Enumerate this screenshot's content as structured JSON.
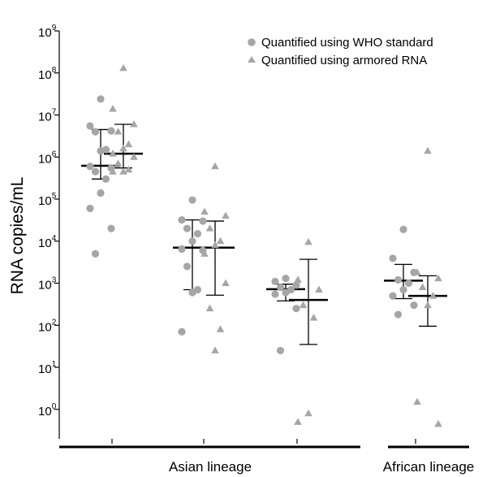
{
  "colors": {
    "point": "#a6a6a6",
    "errorbar": "#000000",
    "axis": "#000000"
  },
  "legend": {
    "position": "top-right",
    "items": [
      {
        "label": "Quantified using WHO standard",
        "marker": "circle"
      },
      {
        "label": "Quantified using armored RNA",
        "marker": "triangle"
      }
    ]
  },
  "groups": [
    {
      "label": "Asian lineage"
    },
    {
      "label": "African lineage"
    }
  ],
  "chart_data": {
    "type": "scatter",
    "ylabel": "RNA copies/mL",
    "xlabel": "",
    "yscale": "log10",
    "ylim_exponent": [
      -0.7,
      9
    ],
    "yticks_exponents": [
      0,
      1,
      2,
      3,
      4,
      5,
      6,
      7,
      8,
      9
    ],
    "ytick_base": "10",
    "grid": false,
    "legend_position": "top-right",
    "series": [
      {
        "name": "Quantified using WHO standard",
        "marker": "circle",
        "columns": [
          {
            "index": 0,
            "group": "Asian lineage",
            "values": [
              24000000,
              5500000,
              4200000,
              4000000,
              1500000,
              1400000,
              600000,
              550000,
              450000,
              300000,
              140000,
              60000,
              20000,
              5000
            ],
            "median": 620000,
            "bar_low": 300000,
            "bar_high": 4500000
          },
          {
            "index": 2,
            "group": "Asian lineage",
            "values": [
              95000,
              32000,
              30000,
              20000,
              15000,
              10000,
              6500,
              6000,
              2500,
              700,
              600,
              70
            ],
            "median": 7000,
            "bar_low": 700,
            "bar_high": 32000
          },
          {
            "index": 4,
            "group": "Asian lineage",
            "values": [
              1300,
              1100,
              900,
              800,
              700,
              600,
              550,
              250,
              25
            ],
            "median": 720,
            "bar_low": 380,
            "bar_high": 950
          },
          {
            "index": 6,
            "group": "African lineage",
            "values": [
              19000,
              3900,
              1800,
              1200,
              1000,
              700,
              500,
              300,
              180
            ],
            "median": 1150,
            "bar_low": 430,
            "bar_high": 2800
          }
        ]
      },
      {
        "name": "Quantified using armored RNA",
        "marker": "triangle",
        "columns": [
          {
            "index": 1,
            "group": "Asian lineage",
            "values": [
              130000000,
              14000000,
              6000000,
              4000000,
              2000000,
              1600000,
              1200000,
              1000000,
              700000,
              500000,
              450000,
              450000
            ],
            "median": 1200000,
            "bar_low": 550000,
            "bar_high": 6000000
          },
          {
            "index": 3,
            "group": "Asian lineage",
            "values": [
              600000,
              50000,
              40000,
              20000,
              10000,
              8000,
              5000,
              1000,
              250,
              80,
              25
            ],
            "median": 7000,
            "bar_low": 520,
            "bar_high": 30000
          },
          {
            "index": 5,
            "group": "Asian lineage",
            "values": [
              9500,
              1200,
              700,
              300,
              150,
              0.8,
              0.5
            ],
            "median": 400,
            "bar_low": 35,
            "bar_high": 3700
          },
          {
            "index": 7,
            "group": "African lineage",
            "values": [
              1400000,
              1800,
              1300,
              800,
              500,
              300,
              1.5,
              0.45
            ],
            "median": 500,
            "bar_low": 95,
            "bar_high": 1500
          }
        ]
      }
    ]
  }
}
